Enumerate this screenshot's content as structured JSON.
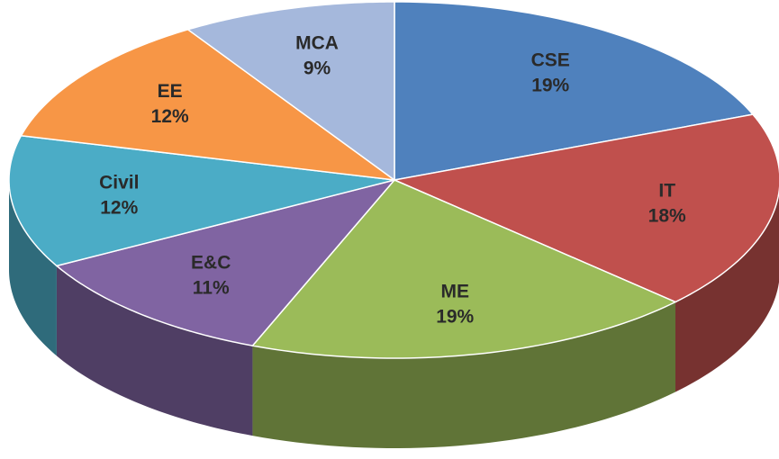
{
  "chart_data": {
    "type": "pie",
    "categories": [
      "CSE",
      "IT",
      "ME",
      "E&C",
      "Civil",
      "EE",
      "MCA"
    ],
    "values": [
      19,
      18,
      19,
      11,
      12,
      12,
      9
    ],
    "value_labels": [
      "19%",
      "18%",
      "19%",
      "11%",
      "12%",
      "12%",
      "9%"
    ],
    "colors": [
      "#4f81bd",
      "#c0504d",
      "#9bbb59",
      "#8064a2",
      "#4bacc6",
      "#f79646",
      "#a5b8dc"
    ]
  }
}
